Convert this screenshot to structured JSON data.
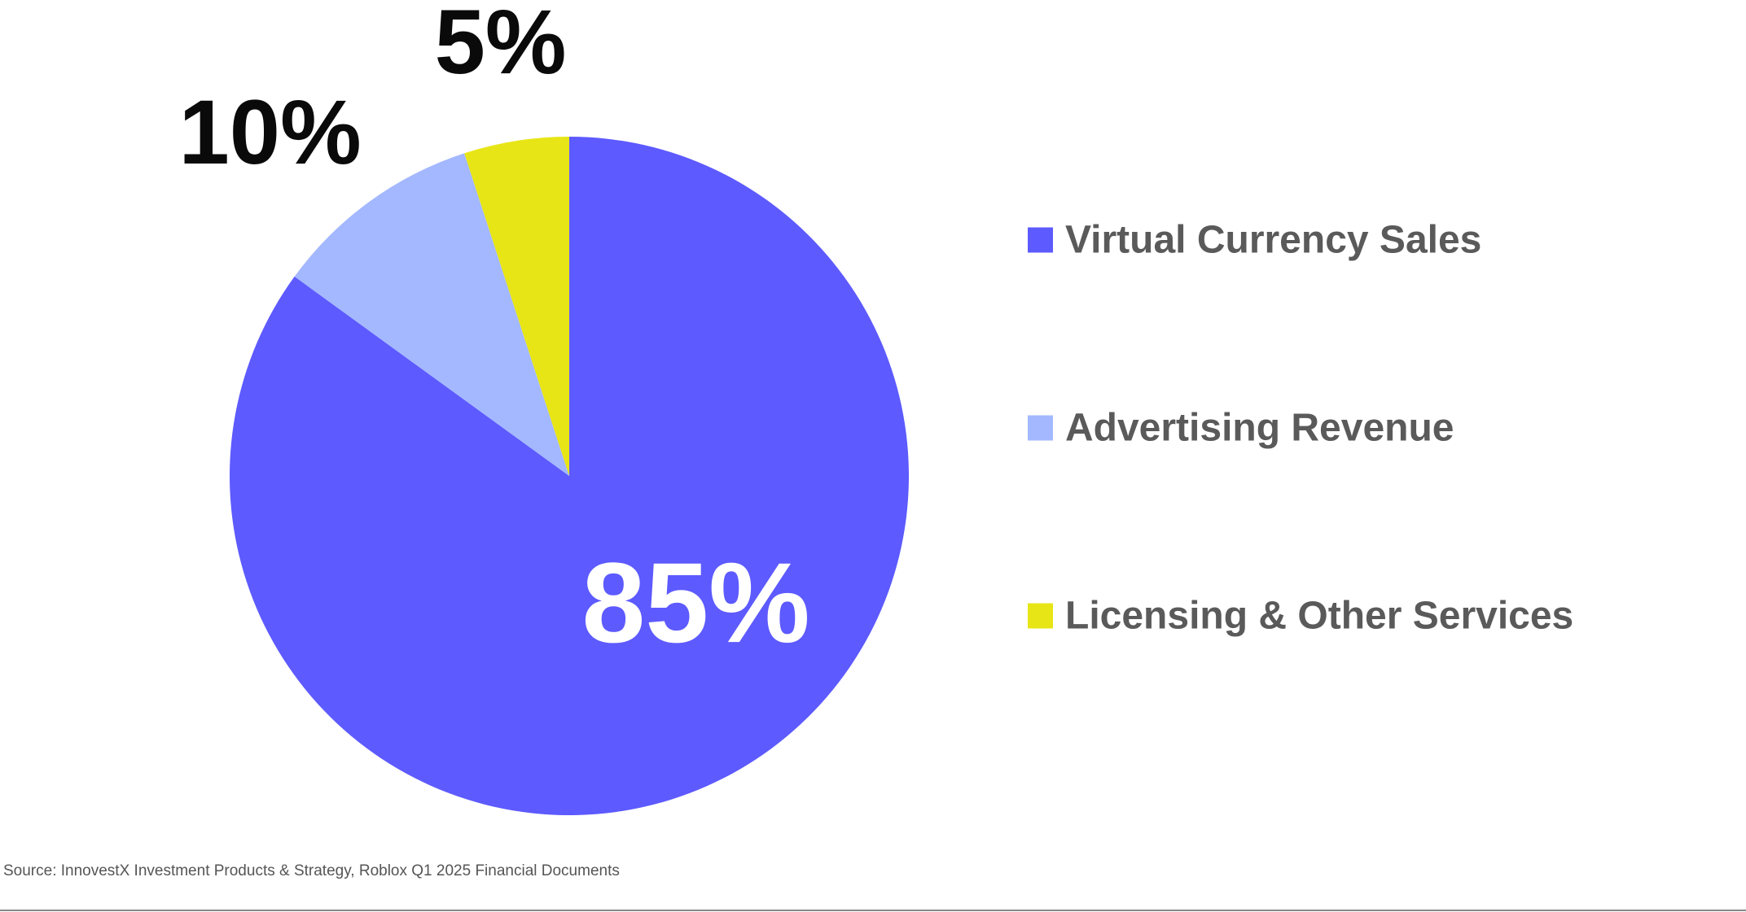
{
  "chart_data": {
    "type": "pie",
    "categories": [
      "Virtual Currency Sales",
      "Advertising Revenue",
      "Licensing & Other Services"
    ],
    "values": [
      85,
      10,
      5
    ],
    "value_labels": [
      "85%",
      "10%",
      "5%"
    ],
    "colors": [
      "#5d5aff",
      "#a3b8ff",
      "#e8e516"
    ],
    "label_colors": [
      "#ffffff",
      "#0a0a0a",
      "#0a0a0a"
    ],
    "legend_position": "right",
    "start_angle": "top",
    "direction": "clockwise"
  },
  "footer": {
    "source": "Source: InnovestX Investment Products & Strategy,  Roblox  Q1 2025 Financial Documents"
  }
}
